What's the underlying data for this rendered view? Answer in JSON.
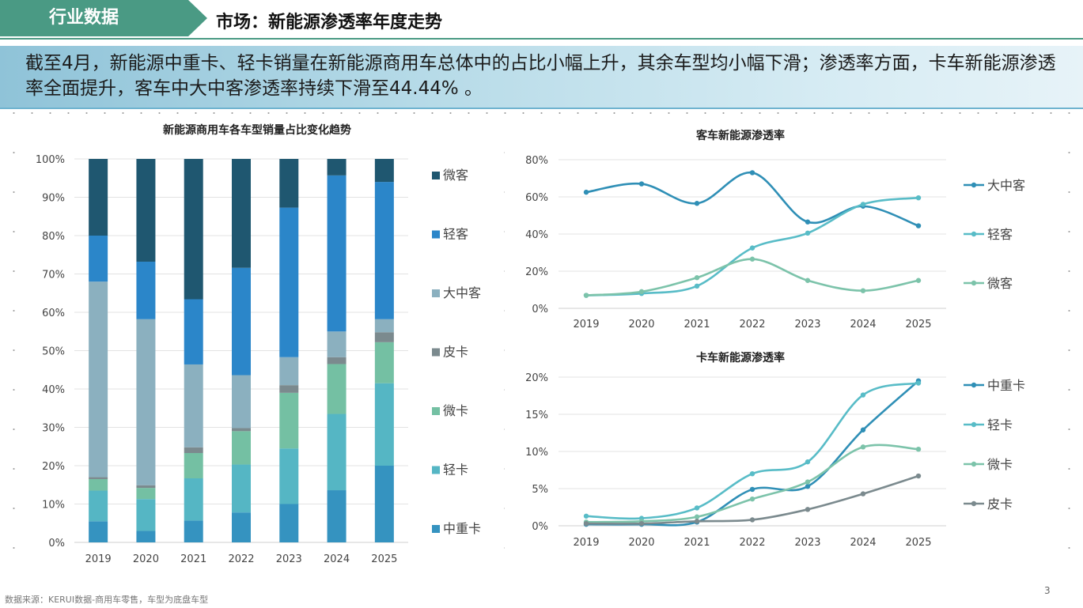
{
  "header": {
    "tag": "行业数据",
    "title": "市场：新能源渗透率年度走势"
  },
  "summary": "截至4月，新能源中重卡、轻卡销量在新能源商用车总体中的占比小幅上升，其余车型均小幅下滑；渗透率方面，卡车新能源渗透率全面提升，客车中大中客渗透率持续下滑至44.44% 。",
  "footer": {
    "source": "数据来源：KERUI数据-商用车零售，车型为底盘车型",
    "page": "3"
  },
  "colors": {
    "header_green": "#4a9a84",
    "中重卡": "#3593c0",
    "轻卡": "#55b6c4",
    "微卡": "#74c0a3",
    "皮卡": "#7b8a8e",
    "大中客": "#8bb0bf",
    "轻客": "#2b86c9",
    "微客": "#1f5770"
  },
  "chart_data": [
    {
      "type": "bar",
      "stacked": true,
      "title": "新能源商用车各车型销量占比变化趋势",
      "categories": [
        "2019",
        "2020",
        "2021",
        "2022",
        "2023",
        "2024",
        "2025"
      ],
      "ylim": [
        0,
        100
      ],
      "yticks": [
        "0%",
        "10%",
        "20%",
        "30%",
        "40%",
        "50%",
        "60%",
        "70%",
        "80%",
        "90%",
        "100%"
      ],
      "legend_position": "right",
      "series": [
        {
          "name": "中重卡",
          "color": "#3593c0",
          "values": [
            5.5,
            3.0,
            5.7,
            7.8,
            10.0,
            13.6,
            20.0
          ]
        },
        {
          "name": "轻卡",
          "color": "#55b6c4",
          "values": [
            8.0,
            8.3,
            11.0,
            12.5,
            14.5,
            19.9,
            21.5
          ]
        },
        {
          "name": "微卡",
          "color": "#74c0a3",
          "values": [
            3.0,
            2.9,
            6.6,
            8.7,
            14.5,
            13.0,
            10.7
          ]
        },
        {
          "name": "皮卡",
          "color": "#7b8a8e",
          "values": [
            0.5,
            0.7,
            1.5,
            0.8,
            2.0,
            1.8,
            2.6
          ]
        },
        {
          "name": "大中客",
          "color": "#8bb0bf",
          "values": [
            51.0,
            43.3,
            21.6,
            13.8,
            7.3,
            6.7,
            3.4
          ]
        },
        {
          "name": "轻客",
          "color": "#2b86c9",
          "values": [
            12.0,
            15.0,
            17.0,
            28.0,
            39.0,
            40.7,
            35.8
          ]
        },
        {
          "name": "微客",
          "color": "#1f5770",
          "values": [
            20.0,
            26.8,
            36.6,
            28.4,
            12.7,
            4.3,
            6.0
          ]
        }
      ]
    },
    {
      "type": "line",
      "smooth": true,
      "title": "客车新能源渗透率",
      "x": [
        "2019",
        "2020",
        "2021",
        "2022",
        "2023",
        "2024",
        "2025"
      ],
      "ylim": [
        0,
        80
      ],
      "yticks": [
        "0%",
        "20%",
        "40%",
        "60%",
        "80%"
      ],
      "legend_position": "right",
      "series": [
        {
          "name": "大中客",
          "color": "#2f8fb6",
          "values": [
            62.5,
            67.0,
            56.5,
            73.0,
            46.5,
            55.0,
            44.44
          ]
        },
        {
          "name": "轻客",
          "color": "#58bcc7",
          "values": [
            7.0,
            8.0,
            12.0,
            32.5,
            40.5,
            56.0,
            59.5
          ]
        },
        {
          "name": "微客",
          "color": "#7cc3aa",
          "values": [
            7.0,
            9.0,
            16.5,
            26.5,
            15.0,
            9.5,
            15.0
          ]
        }
      ]
    },
    {
      "type": "line",
      "smooth": true,
      "title": "卡车新能源渗透率",
      "x": [
        "2019",
        "2020",
        "2021",
        "2022",
        "2023",
        "2024",
        "2025"
      ],
      "ylim": [
        0,
        20
      ],
      "yticks": [
        "0%",
        "5%",
        "10%",
        "15%",
        "20%"
      ],
      "legend_position": "right",
      "series": [
        {
          "name": "中重卡",
          "color": "#2f8fb6",
          "values": [
            0.2,
            0.2,
            0.5,
            4.9,
            5.3,
            12.9,
            19.5
          ]
        },
        {
          "name": "轻卡",
          "color": "#58bcc7",
          "values": [
            1.3,
            1.0,
            2.4,
            7.0,
            8.6,
            17.6,
            19.2
          ]
        },
        {
          "name": "微卡",
          "color": "#7cc3aa",
          "values": [
            0.5,
            0.6,
            1.2,
            3.6,
            5.9,
            10.6,
            10.3
          ]
        },
        {
          "name": "皮卡",
          "color": "#7b8a8e",
          "values": [
            0.3,
            0.3,
            0.6,
            0.8,
            2.2,
            4.3,
            6.7
          ]
        }
      ]
    }
  ]
}
